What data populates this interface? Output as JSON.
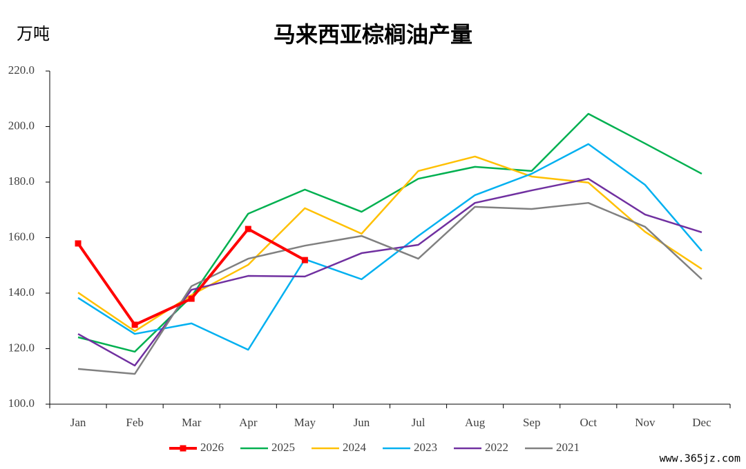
{
  "chart_data": {
    "type": "line",
    "title": "马来西亚棕榈油产量",
    "y_unit": "万吨",
    "watermark": "www.365jz.com",
    "categories": [
      "Jan",
      "Feb",
      "Mar",
      "Apr",
      "May",
      "Jun",
      "Jul",
      "Aug",
      "Sep",
      "Oct",
      "Nov",
      "Dec"
    ],
    "ylim": [
      100,
      220
    ],
    "yticks": [
      {
        "value": 100,
        "label": "100.0"
      },
      {
        "value": 120,
        "label": "120.0"
      },
      {
        "value": 140,
        "label": "140.0"
      },
      {
        "value": 160,
        "label": "160.0"
      },
      {
        "value": 180,
        "label": "180.0"
      },
      {
        "value": 200,
        "label": "200.0"
      },
      {
        "value": 220,
        "label": "220.0"
      }
    ],
    "series": [
      {
        "name": "2026",
        "color": "#ff0000",
        "marker": "square",
        "values": [
          157.9,
          128.6,
          138.0,
          163.1,
          151.9,
          null,
          null,
          null,
          null,
          null,
          null,
          null
        ]
      },
      {
        "name": "2025",
        "color": "#00b050",
        "values": [
          124.1,
          118.9,
          138.8,
          168.6,
          177.3,
          169.3,
          181.2,
          185.5,
          184.0,
          204.6,
          193.9,
          183.0
        ]
      },
      {
        "name": "2024",
        "color": "#ffc000",
        "values": [
          140.2,
          126.3,
          139.3,
          150.2,
          170.6,
          161.4,
          184.0,
          189.2,
          182.0,
          179.8,
          162.1,
          148.7
        ]
      },
      {
        "name": "2023",
        "color": "#00b0f0",
        "values": [
          138.3,
          125.3,
          129.1,
          119.6,
          152.2,
          145.0,
          160.6,
          175.3,
          183.0,
          193.7,
          179.0,
          155.2
        ]
      },
      {
        "name": "2022",
        "color": "#7030a0",
        "values": [
          125.3,
          113.9,
          141.2,
          146.2,
          146.0,
          154.4,
          157.4,
          172.5,
          177.0,
          181.2,
          168.3,
          161.9
        ]
      },
      {
        "name": "2021",
        "color": "#808080",
        "values": [
          112.7,
          110.9,
          142.5,
          152.4,
          157.1,
          160.6,
          152.4,
          171.1,
          170.3,
          172.5,
          163.9,
          145.0
        ]
      }
    ]
  }
}
